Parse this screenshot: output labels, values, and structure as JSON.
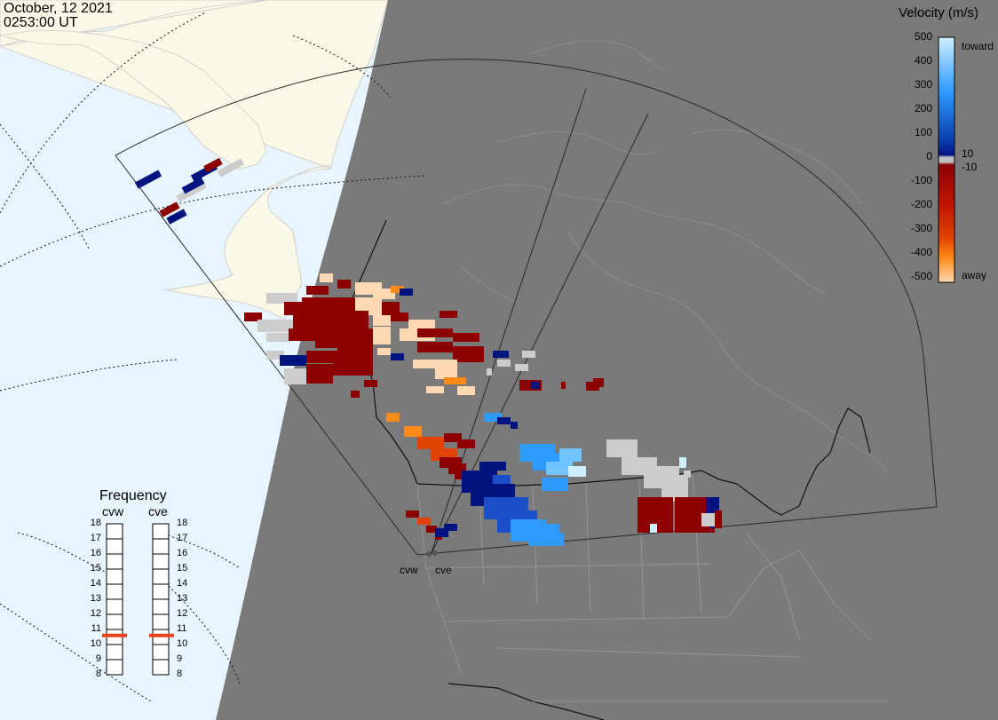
{
  "header": {
    "date": "October, 12 2021",
    "time": "0253:00 UT"
  },
  "legend": {
    "title": "Velocity (m/s)",
    "ticks": [
      "500",
      "400",
      "300",
      "200",
      "100",
      "10",
      "0",
      "-10",
      "-100",
      "-200",
      "-300",
      "-400",
      "-500"
    ],
    "toward_label": "toward",
    "away_label": "away",
    "colors": {
      "toward_high": "#cfefff",
      "toward_mid": "#2f9bff",
      "toward_low": "#00147f",
      "away_low": "#8c0000",
      "away_mid": "#e04400",
      "away_high": "#ffd9b3",
      "zero": "#bdbdbd"
    }
  },
  "frequency": {
    "title": "Frequency",
    "radars": [
      {
        "name": "cvw",
        "value_mhz": 10.6
      },
      {
        "name": "cve",
        "value_mhz": 10.6
      }
    ],
    "scale": [
      "18",
      "17",
      "16",
      "15",
      "14",
      "13",
      "12",
      "11",
      "10",
      "9",
      "8"
    ],
    "marker_color": "#e8431a"
  },
  "sites": {
    "west": "cvw",
    "east": "cve"
  },
  "map_colors": {
    "ocean": "#e8f5fd",
    "land": "#fbf8e8",
    "night": "#7a7a7a",
    "ground_scatter": "#cccccc"
  }
}
